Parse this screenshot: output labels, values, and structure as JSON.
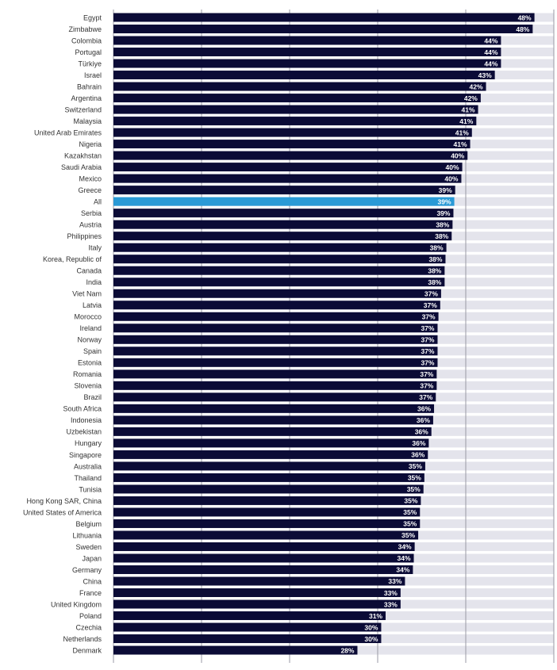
{
  "chart_data": {
    "type": "hbar",
    "categories": [
      "Egypt",
      "Zimbabwe",
      "Colombia",
      "Portugal",
      "Türkiye",
      "Israel",
      "Bahrain",
      "Argentina",
      "Switzerland",
      "Malaysia",
      "United Arab Emirates",
      "Nigeria",
      "Kazakhstan",
      "Saudi Arabia",
      "Mexico",
      "Greece",
      "All",
      "Serbia",
      "Austria",
      "Philippines",
      "Italy",
      "Korea, Republic of",
      "Canada",
      "India",
      "Viet Nam",
      "Latvia",
      "Morocco",
      "Ireland",
      "Norway",
      "Spain",
      "Estonia",
      "Romania",
      "Slovenia",
      "Brazil",
      "South Africa",
      "Indonesia",
      "Uzbekistan",
      "Hungary",
      "Singapore",
      "Australia",
      "Thailand",
      "Tunisia",
      "Hong Kong SAR, China",
      "United States of America",
      "Belgium",
      "Lithuania",
      "Sweden",
      "Japan",
      "Germany",
      "China",
      "France",
      "United Kingdom",
      "Poland",
      "Czechia",
      "Netherlands",
      "Denmark"
    ],
    "values": [
      47.8,
      47.6,
      44.0,
      44.0,
      44.0,
      43.3,
      42.3,
      41.7,
      41.4,
      41.2,
      40.7,
      40.5,
      40.2,
      39.6,
      39.5,
      38.8,
      38.7,
      38.6,
      38.5,
      38.4,
      37.8,
      37.7,
      37.6,
      37.6,
      37.2,
      37.1,
      36.9,
      36.8,
      36.8,
      36.8,
      36.8,
      36.7,
      36.7,
      36.6,
      36.4,
      36.3,
      36.1,
      35.8,
      35.7,
      35.4,
      35.3,
      35.2,
      34.9,
      34.8,
      34.8,
      34.6,
      34.2,
      34.1,
      34.0,
      33.1,
      32.6,
      32.6,
      30.9,
      30.4,
      30.4,
      27.7
    ],
    "value_labels": [
      "48%",
      "48%",
      "44%",
      "44%",
      "44%",
      "43%",
      "42%",
      "42%",
      "41%",
      "41%",
      "41%",
      "41%",
      "40%",
      "40%",
      "40%",
      "39%",
      "39%",
      "39%",
      "38%",
      "38%",
      "38%",
      "38%",
      "38%",
      "38%",
      "37%",
      "37%",
      "37%",
      "37%",
      "37%",
      "37%",
      "37%",
      "37%",
      "37%",
      "37%",
      "36%",
      "36%",
      "36%",
      "36%",
      "36%",
      "35%",
      "35%",
      "35%",
      "35%",
      "35%",
      "35%",
      "35%",
      "34%",
      "34%",
      "34%",
      "33%",
      "33%",
      "33%",
      "31%",
      "30%",
      "30%",
      "28%"
    ],
    "colors": [
      "#0b0b36",
      "#0b0b36",
      "#0b0b36",
      "#0b0b36",
      "#0b0b36",
      "#0b0b36",
      "#0b0b36",
      "#0b0b36",
      "#0b0b36",
      "#0b0b36",
      "#0b0b36",
      "#0b0b36",
      "#0b0b36",
      "#0b0b36",
      "#0b0b36",
      "#0b0b36",
      "#2a9ad6",
      "#0b0b36",
      "#0b0b36",
      "#0b0b36",
      "#0b0b36",
      "#0b0b36",
      "#0b0b36",
      "#0b0b36",
      "#0b0b36",
      "#0b0b36",
      "#0b0b36",
      "#0b0b36",
      "#0b0b36",
      "#0b0b36",
      "#0b0b36",
      "#0b0b36",
      "#0b0b36",
      "#0b0b36",
      "#0b0b36",
      "#0b0b36",
      "#0b0b36",
      "#0b0b36",
      "#0b0b36",
      "#0b0b36",
      "#0b0b36",
      "#0b0b36",
      "#0b0b36",
      "#0b0b36",
      "#0b0b36",
      "#0b0b36",
      "#0b0b36",
      "#0b0b36",
      "#0b0b36",
      "#0b0b36",
      "#0b0b36",
      "#0b0b36",
      "#0b0b36",
      "#0b0b36",
      "#0b0b36",
      "#0b0b36"
    ],
    "xlim": [
      0,
      50
    ],
    "xticks": [
      0,
      10,
      20,
      30,
      40,
      50
    ],
    "grid": true
  }
}
